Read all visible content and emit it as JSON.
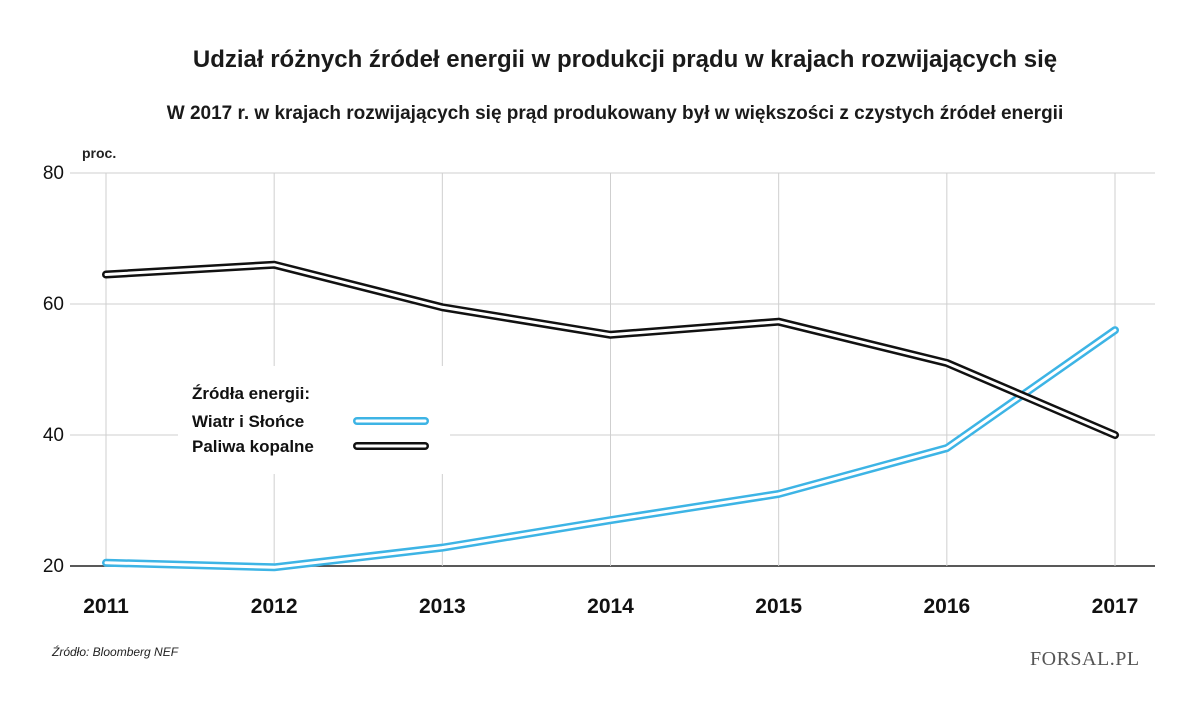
{
  "title": "Udział różnych źródeł energii w produkcji prądu w krajach rozwijających się",
  "subtitle": "W 2017 r. w krajach rozwijających się prąd produkowany był w większości z czystych źródeł energii",
  "source": "Źródło:  Bloomberg NEF",
  "logo": {
    "text": "FORSAL.PL"
  },
  "chart_data": {
    "type": "line",
    "title": "Udział różnych źródeł energii w produkcji prądu w krajach rozwijających się",
    "subtitle": "W 2017 r. w krajach rozwijających się prąd produkowany był w większości z czystych źródeł energii",
    "ylabel": "proc.",
    "xlabel": "",
    "x": [
      "2011",
      "2012",
      "2013",
      "2014",
      "2015",
      "2016",
      "2017"
    ],
    "ylim": [
      20,
      80
    ],
    "yticks": [
      20,
      40,
      60,
      80
    ],
    "grid": true,
    "legend_title": "Źródła energii:",
    "legend_placement": "center-left",
    "series": [
      {
        "name": "Wiatr i Słońce",
        "color": "#3db4e5",
        "values": [
          20.5,
          19.8,
          22.8,
          27.0,
          31.0,
          38.0,
          56.0
        ]
      },
      {
        "name": "Paliwa kopalne",
        "color": "#111111",
        "values": [
          64.5,
          66.0,
          59.5,
          55.3,
          57.3,
          51.0,
          40.0
        ]
      }
    ]
  }
}
